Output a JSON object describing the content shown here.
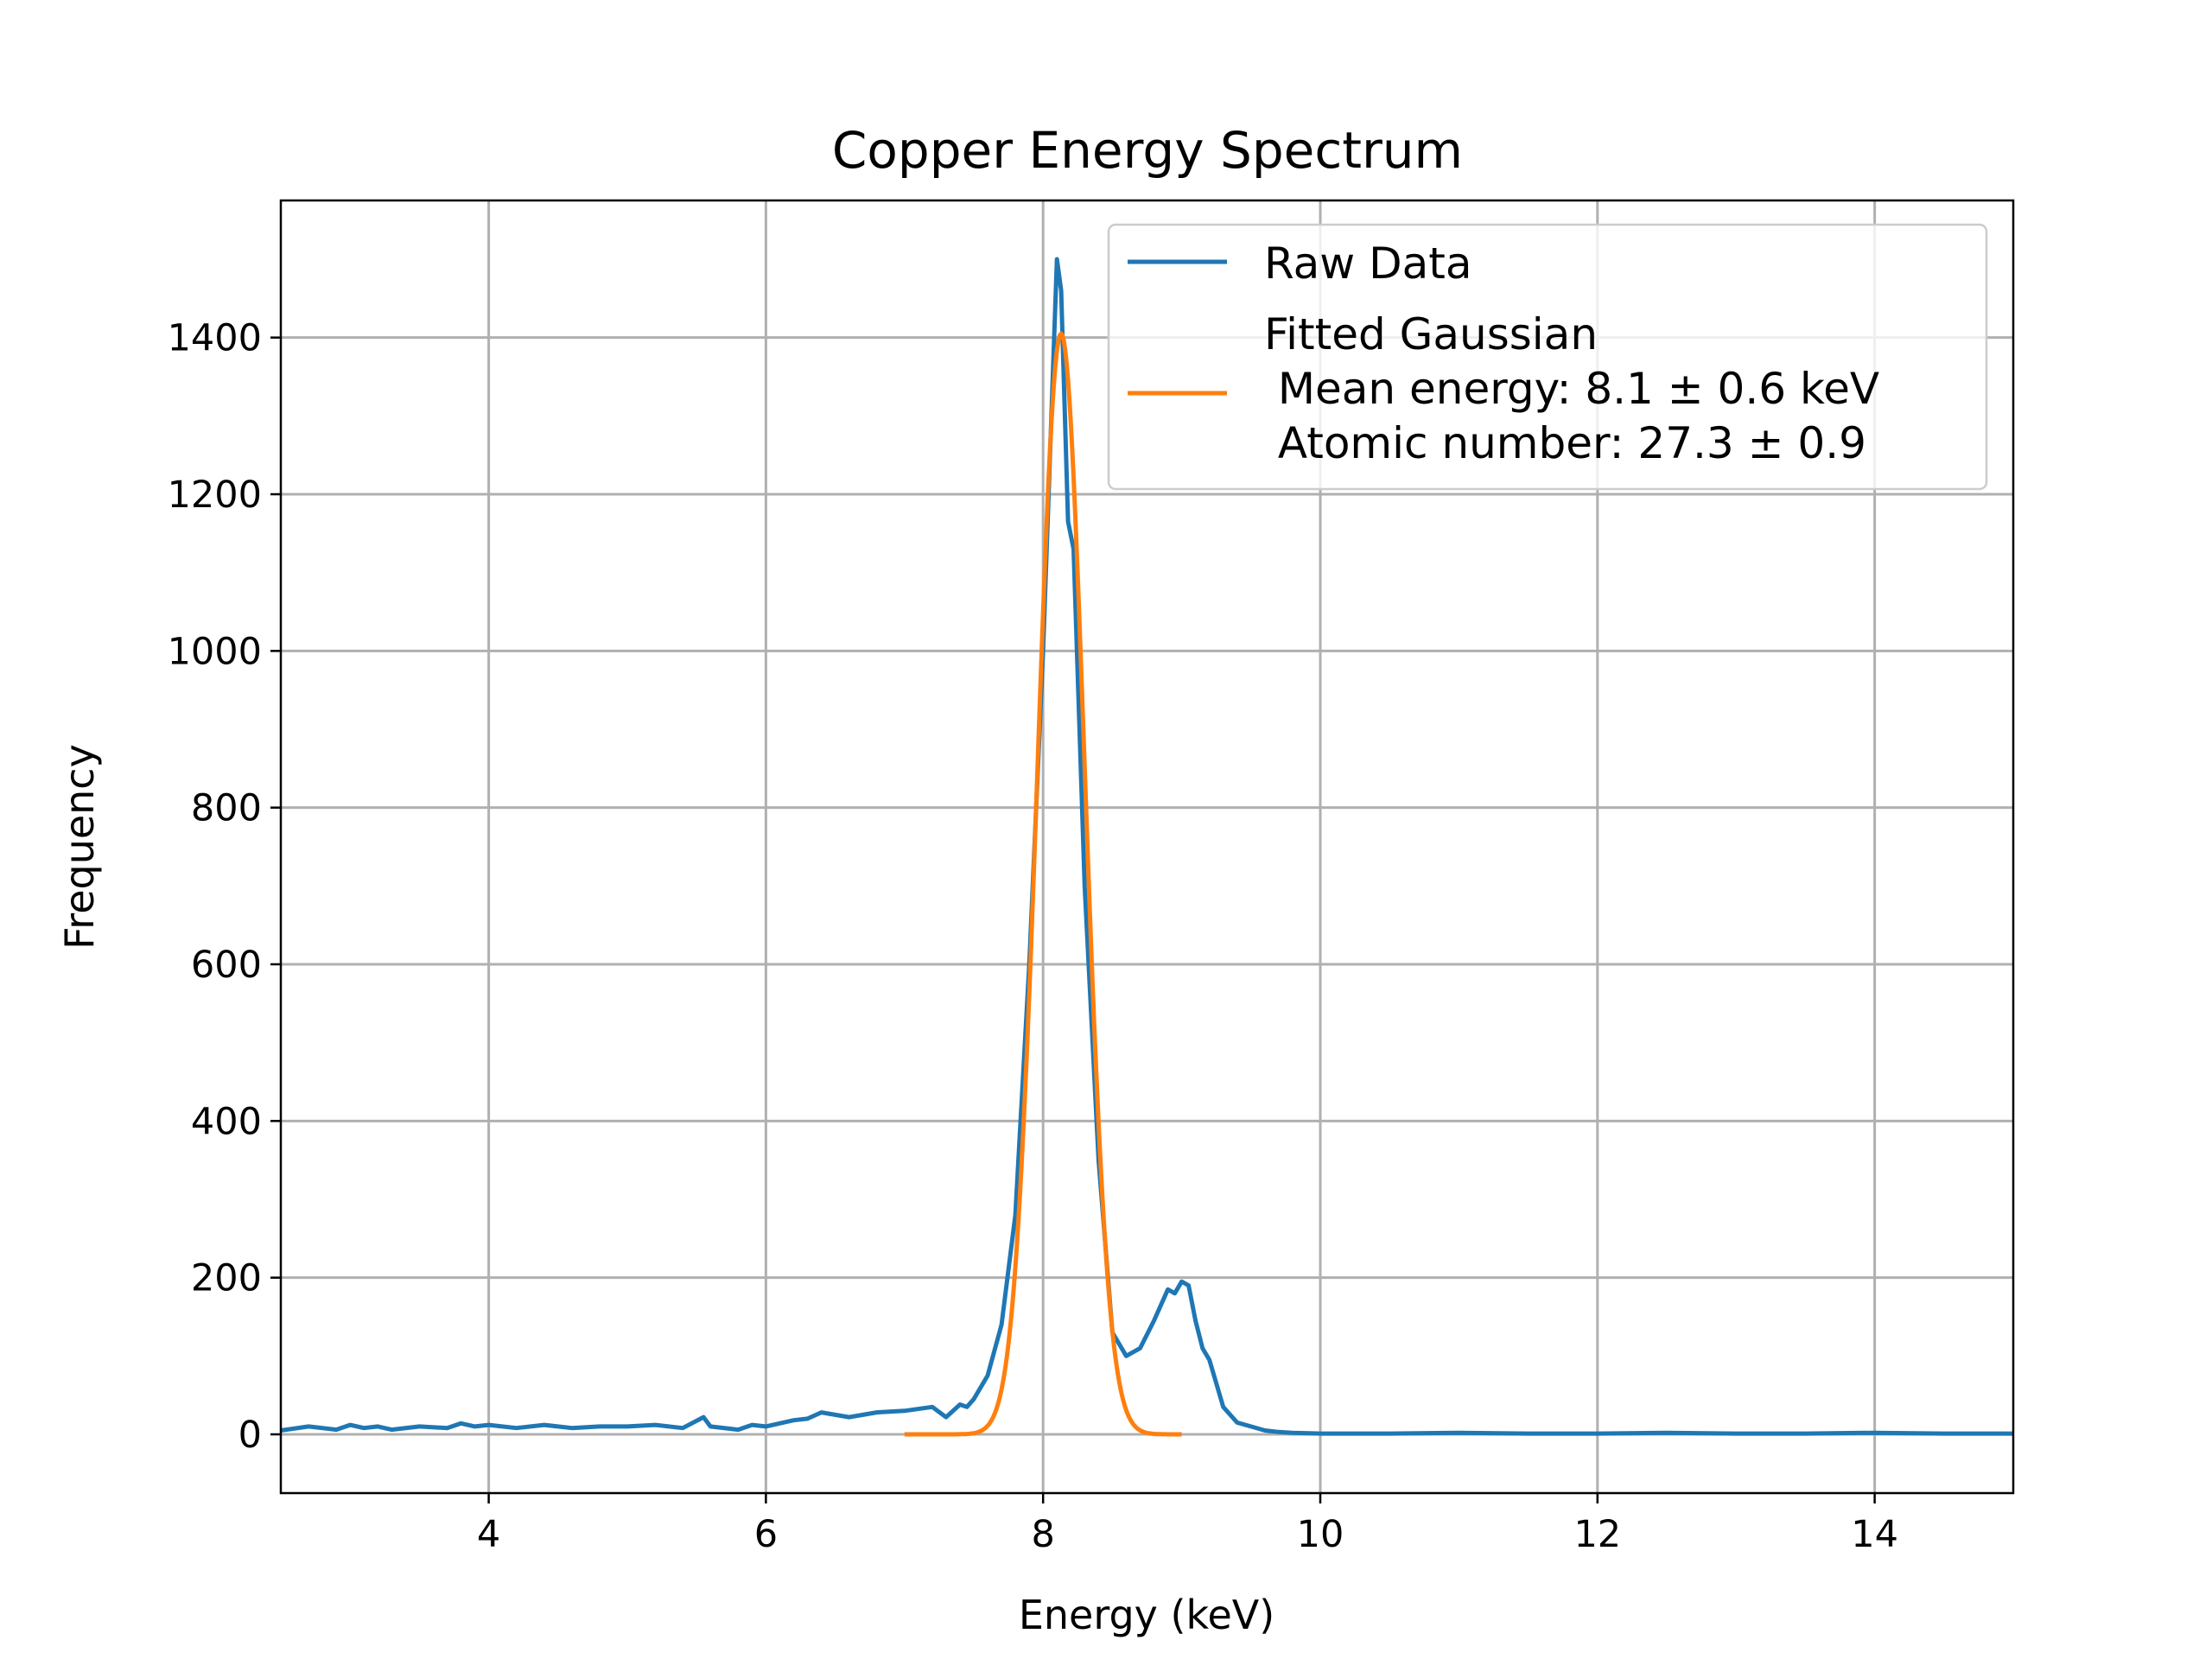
{
  "chart_data": {
    "type": "line",
    "title": "Copper Energy Spectrum",
    "xlabel": "Energy (keV)",
    "ylabel": "Frequency",
    "xlim": [
      2.5,
      15.0
    ],
    "ylim": [
      -75,
      1575
    ],
    "xticks": [
      4,
      6,
      8,
      10,
      12,
      14
    ],
    "yticks": [
      0,
      200,
      400,
      600,
      800,
      1000,
      1200,
      1400
    ],
    "grid": true,
    "legend_position": "top-right",
    "series": [
      {
        "name": "Raw Data",
        "color": "#1f77b4",
        "x": [
          2.5,
          2.7,
          2.9,
          3.0,
          3.1,
          3.2,
          3.3,
          3.5,
          3.7,
          3.8,
          3.9,
          4.0,
          4.2,
          4.4,
          4.6,
          4.8,
          5.0,
          5.2,
          5.4,
          5.55,
          5.6,
          5.8,
          5.9,
          6.0,
          6.2,
          6.3,
          6.4,
          6.6,
          6.8,
          7.0,
          7.2,
          7.3,
          7.4,
          7.45,
          7.5,
          7.6,
          7.7,
          7.8,
          7.9,
          8.0,
          8.05,
          8.1,
          8.13,
          8.18,
          8.22,
          8.3,
          8.4,
          8.5,
          8.6,
          8.7,
          8.8,
          8.9,
          8.95,
          9.0,
          9.05,
          9.1,
          9.15,
          9.2,
          9.3,
          9.4,
          9.5,
          9.6,
          9.7,
          9.8,
          10.0,
          10.5,
          11.0,
          11.5,
          12.0,
          12.5,
          13.0,
          13.5,
          14.0,
          14.5,
          15.0
        ],
        "y": [
          5,
          10,
          6,
          12,
          8,
          10,
          6,
          10,
          8,
          14,
          10,
          12,
          8,
          12,
          8,
          10,
          10,
          12,
          8,
          22,
          10,
          6,
          12,
          10,
          18,
          20,
          28,
          22,
          28,
          30,
          35,
          22,
          38,
          35,
          45,
          75,
          140,
          280,
          600,
          1000,
          1250,
          1500,
          1460,
          1165,
          1130,
          700,
          350,
          130,
          100,
          110,
          145,
          185,
          180,
          195,
          190,
          145,
          110,
          95,
          35,
          15,
          10,
          5,
          3,
          2,
          1,
          1,
          2,
          1,
          1,
          2,
          1,
          1,
          2,
          1,
          1
        ]
      },
      {
        "name": "Fitted Gaussian\n Mean energy: 8.1 ± 0.6 keV\n Atomic number: 27.3 ± 0.9",
        "color": "#ff7f0e",
        "function": "gaussian",
        "amplitude": 1405,
        "mean": 8.13,
        "sigma": 0.17,
        "x_range": [
          7.0,
          9.0
        ]
      }
    ],
    "legend": [
      "Raw Data",
      "Fitted Gaussian",
      " Mean energy: 8.1 ± 0.6 keV",
      " Atomic number: 27.3 ± 0.9"
    ]
  }
}
